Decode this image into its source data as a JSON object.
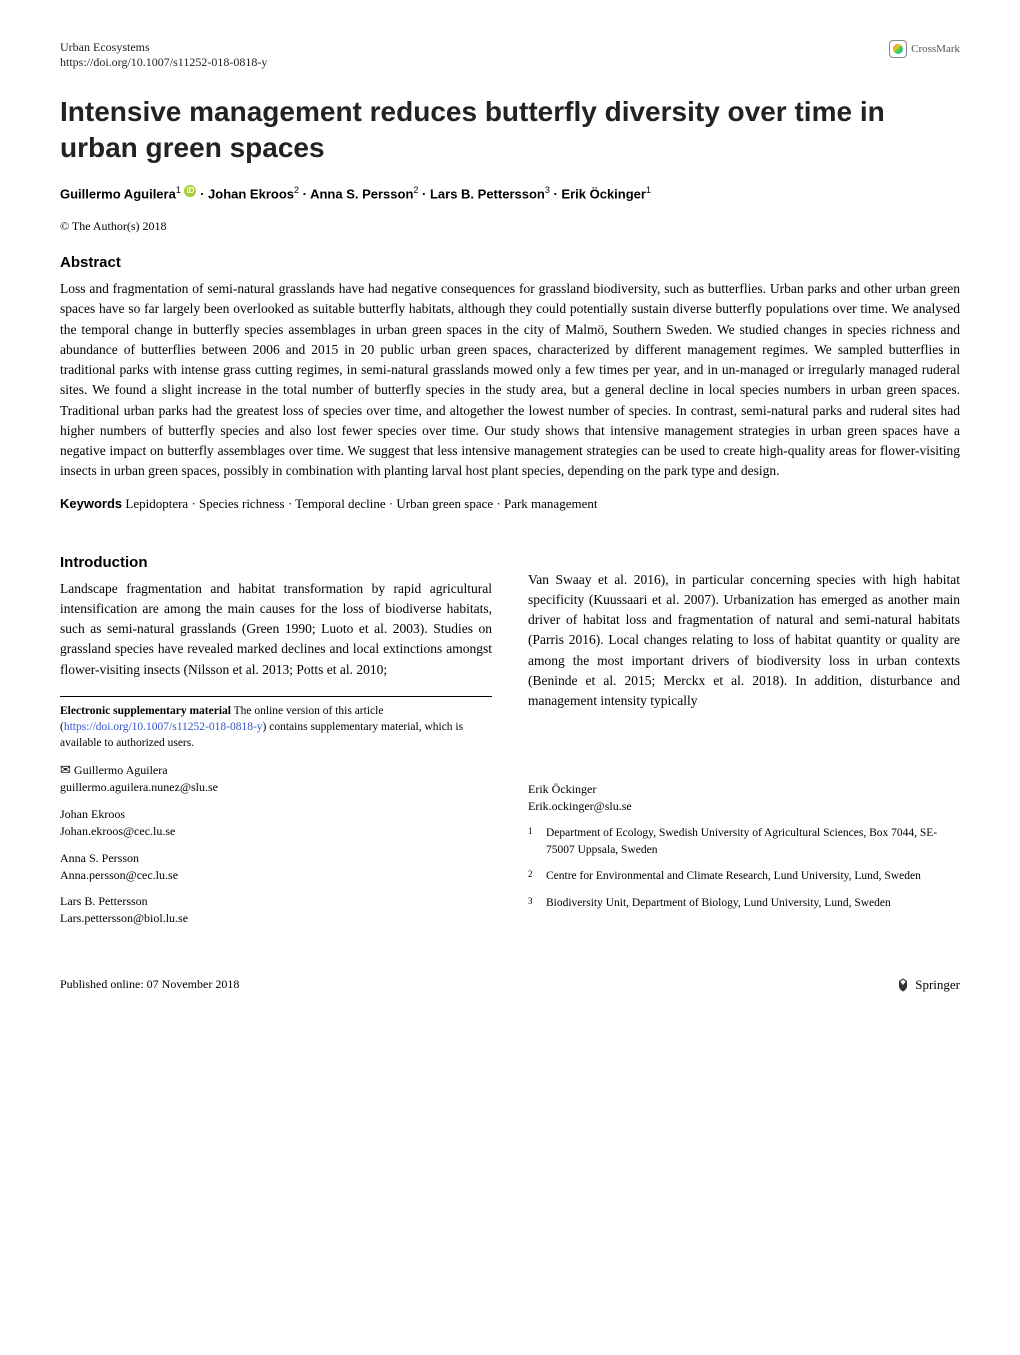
{
  "header": {
    "journal": "Urban Ecosystems",
    "doi": "https://doi.org/10.1007/s11252-018-0818-y",
    "crossmark": "CrossMark"
  },
  "title": "Intensive management reduces butterfly diversity over time in urban green spaces",
  "authors_html": "Guillermo Aguilera<sup>1</sup> <span class='orcid' data-name='orcid-icon' data-interactable='false'>iD</span> · Johan Ekroos<sup>2</sup> · Anna S. Persson<sup>2</sup> · Lars B. Pettersson<sup>3</sup> · Erik Öckinger<sup>1</sup>",
  "copyright": "© The Author(s) 2018",
  "abstract": {
    "heading": "Abstract",
    "text": "Loss and fragmentation of semi-natural grasslands have had negative consequences for grassland biodiversity, such as butterflies. Urban parks and other urban green spaces have so far largely been overlooked as suitable butterfly habitats, although they could potentially sustain diverse butterfly populations over time. We analysed the temporal change in butterfly species assemblages in urban green spaces in the city of Malmö, Southern Sweden. We studied changes in species richness and abundance of butterflies between 2006 and 2015 in 20 public urban green spaces, characterized by different management regimes. We sampled butterflies in traditional parks with intense grass cutting regimes, in semi-natural grasslands mowed only a few times per year, and in un-managed or irregularly managed ruderal sites. We found a slight increase in the total number of butterfly species in the study area, but a general decline in local species numbers in urban green spaces. Traditional urban parks had the greatest loss of species over time, and altogether the lowest number of species. In contrast, semi-natural parks and ruderal sites had higher numbers of butterfly species and also lost fewer species over time. Our study shows that intensive management strategies in urban green spaces have a negative impact on butterfly assemblages over time. We suggest that less intensive management strategies can be used to create high-quality areas for flower-visiting insects in urban green spaces, possibly in combination with planting larval host plant species, depending on the park type and design."
  },
  "keywords": {
    "label": "Keywords",
    "text": "Lepidoptera · Species richness · Temporal decline · Urban green space · Park management"
  },
  "introduction": {
    "heading": "Introduction",
    "col1": "Landscape fragmentation and habitat transformation by rapid agricultural intensification are among the main causes for the loss of biodiverse habitats, such as semi-natural grasslands (Green 1990; Luoto et al. 2003). Studies on grassland species have revealed marked declines and local extinctions amongst flower-visiting insects (Nilsson et al. 2013; Potts et al. 2010;",
    "col2": "Van Swaay et al. 2016), in particular concerning species with high habitat specificity (Kuussaari et al. 2007). Urbanization has emerged as another main driver of habitat loss and fragmentation of natural and semi-natural habitats (Parris 2016). Local changes relating to loss of habitat quantity or quality are among the most important drivers of biodiversity loss in urban contexts (Beninde et al. 2015; Merckx et al. 2018). In addition, disturbance and management intensity typically"
  },
  "supplementary": {
    "label": "Electronic supplementary material",
    "text": "The online version of this article (",
    "doi_link": "https://doi.org/10.1007/s11252-018-0818-y",
    "text_after": ") contains supplementary material, which is available to authorized users."
  },
  "correspondence": [
    {
      "name": "Guillermo Aguilera",
      "email": "guillermo.aguilera.nunez@slu.se",
      "primary": true
    },
    {
      "name": "Johan Ekroos",
      "email": "Johan.ekroos@cec.lu.se",
      "primary": false
    },
    {
      "name": "Anna S. Persson",
      "email": "Anna.persson@cec.lu.se",
      "primary": false
    },
    {
      "name": "Lars B. Pettersson",
      "email": "Lars.pettersson@biol.lu.se",
      "primary": false
    }
  ],
  "correspondence_col2": [
    {
      "name": "Erik Öckinger",
      "email": "Erik.ockinger@slu.se"
    }
  ],
  "affiliations": [
    {
      "num": "1",
      "text": "Department of Ecology, Swedish University of Agricultural Sciences, Box 7044, SE-75007 Uppsala, Sweden"
    },
    {
      "num": "2",
      "text": "Centre for Environmental and Climate Research, Lund University, Lund, Sweden"
    },
    {
      "num": "3",
      "text": "Biodiversity Unit, Department of Biology, Lund University, Lund, Sweden"
    }
  ],
  "footer": {
    "published": "Published online: 07 November 2018",
    "publisher": "Springer"
  }
}
